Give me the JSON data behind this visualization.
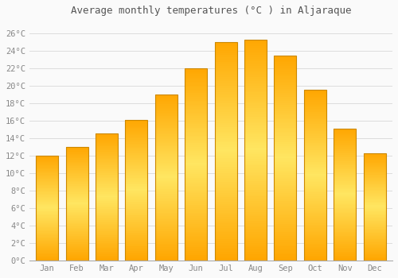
{
  "title": "Average monthly temperatures (°C ) in Aljaraque",
  "months": [
    "Jan",
    "Feb",
    "Mar",
    "Apr",
    "May",
    "Jun",
    "Jul",
    "Aug",
    "Sep",
    "Oct",
    "Nov",
    "Dec"
  ],
  "values": [
    12.0,
    13.0,
    14.5,
    16.1,
    19.0,
    22.0,
    25.0,
    25.3,
    23.4,
    19.5,
    15.1,
    12.3
  ],
  "bar_color_top": "#FFA500",
  "bar_color_bottom": "#FFD060",
  "bar_color_mid": "#FFB833",
  "bar_edge_color": "#CC8800",
  "background_color": "#FAFAFA",
  "grid_color": "#DDDDDD",
  "ytick_labels": [
    "0°C",
    "2°C",
    "4°C",
    "6°C",
    "8°C",
    "10°C",
    "12°C",
    "14°C",
    "16°C",
    "18°C",
    "20°C",
    "22°C",
    "24°C",
    "26°C"
  ],
  "ytick_values": [
    0,
    2,
    4,
    6,
    8,
    10,
    12,
    14,
    16,
    18,
    20,
    22,
    24,
    26
  ],
  "ylim": [
    0,
    27.5
  ],
  "title_fontsize": 9,
  "tick_fontsize": 7.5,
  "tick_font_color": "#888888",
  "title_font_color": "#555555",
  "figsize": [
    5.0,
    3.5
  ],
  "dpi": 100
}
